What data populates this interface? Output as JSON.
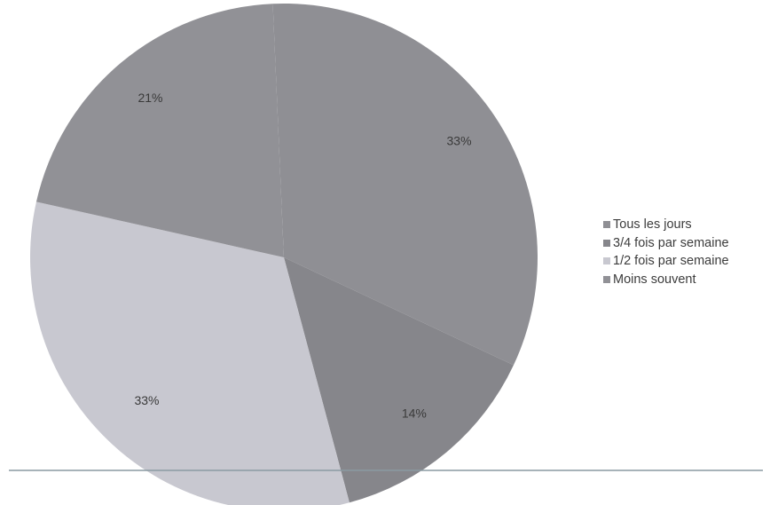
{
  "chart_data": {
    "type": "pie",
    "title": "",
    "categories": [
      "Tous les jours",
      "3/4 fois par semaine",
      "1/2 fois par semaine",
      "Moins souvent"
    ],
    "values": [
      33,
      14,
      33,
      21
    ],
    "labels": [
      "33%",
      "14%",
      "33%",
      "21%"
    ],
    "colors": [
      "#8f8f94",
      "#86868b",
      "#c8c8d0",
      "#919196"
    ],
    "legend_placement": "right"
  }
}
